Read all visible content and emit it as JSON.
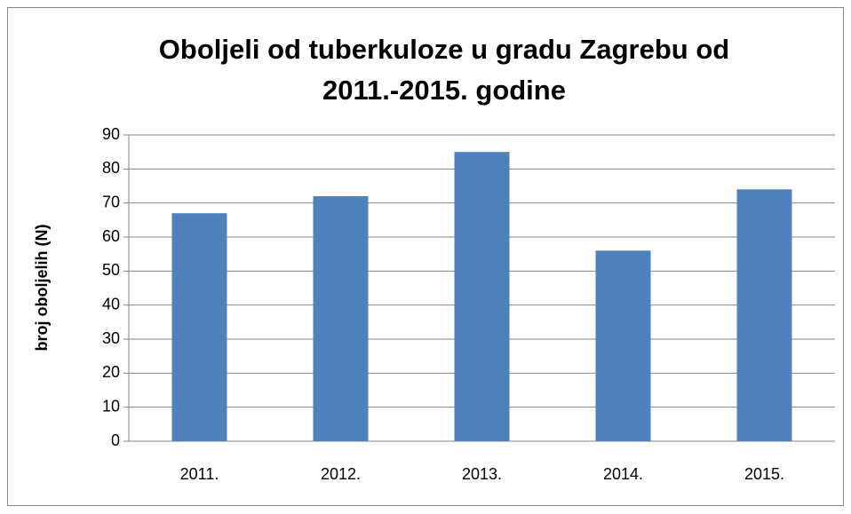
{
  "chart_data": {
    "type": "bar",
    "title": [
      "Oboljeli od tuberkuloze u gradu Zagrebu od",
      "2011.-2015. godine"
    ],
    "ylabel": "broj oboljelih (N)",
    "categories": [
      "2011.",
      "2012.",
      "2013.",
      "2014.",
      "2015."
    ],
    "values": [
      67,
      72,
      85,
      56,
      74
    ],
    "color": "#4f81bd",
    "ylim": [
      0,
      90
    ],
    "yticks": [
      0,
      10,
      20,
      30,
      40,
      50,
      60,
      70,
      80,
      90
    ],
    "grid": true
  }
}
